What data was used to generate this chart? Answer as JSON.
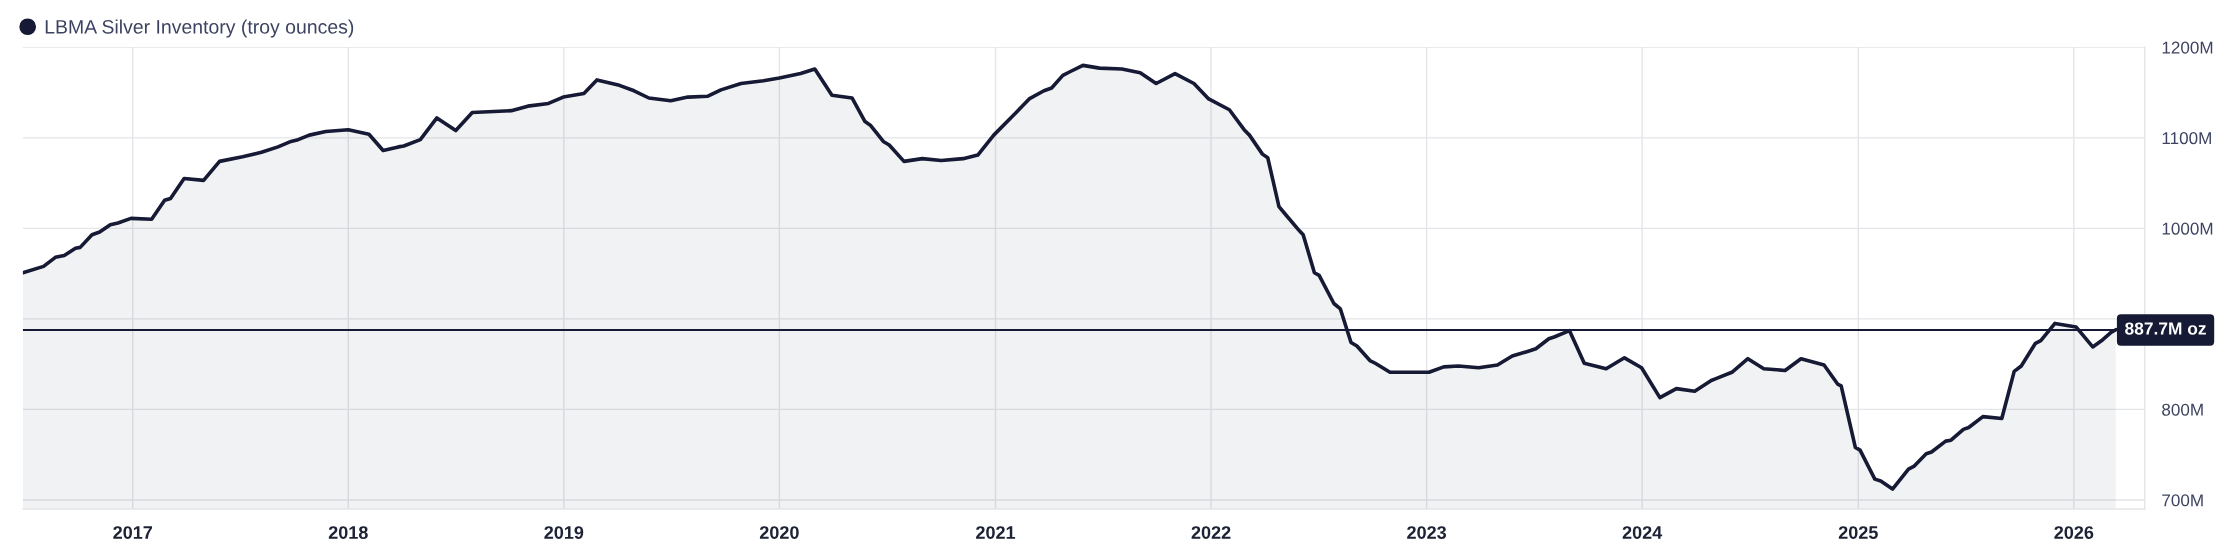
{
  "chart_data": {
    "type": "area",
    "x": [
      "2016-06-29",
      "2016-08-03",
      "2016-08-23",
      "2016-09-07",
      "2016-09-26",
      "2016-10-04",
      "2016-10-24",
      "2016-11-06",
      "2016-11-24",
      "2016-12-07",
      "2016-12-29",
      "2017-02-02",
      "2017-02-24",
      "2017-03-06",
      "2017-03-29",
      "2017-05-01",
      "2017-05-28",
      "2017-07-06",
      "2017-08-07",
      "2017-09-04",
      "2017-09-26",
      "2017-10-08",
      "2017-10-27",
      "2017-11-24",
      "2018-01-01",
      "2018-02-05",
      "2018-03-01",
      "2018-03-27",
      "2018-04-05",
      "2018-05-03",
      "2018-05-31",
      "2018-07-02",
      "2018-07-30",
      "2018-10-04",
      "2018-11-01",
      "2018-12-06",
      "2018-12-31",
      "2019-02-04",
      "2019-02-26",
      "2019-04-05",
      "2019-04-30",
      "2019-05-25",
      "2019-07-01",
      "2019-07-30",
      "2019-09-02",
      "2019-09-24",
      "2019-10-28",
      "2019-12-05",
      "2020-01-01",
      "2020-02-06",
      "2020-03-01",
      "2020-03-30",
      "2020-05-03",
      "2020-05-25",
      "2020-06-03",
      "2020-06-25",
      "2020-07-05",
      "2020-07-30",
      "2020-08-30",
      "2020-10-01",
      "2020-11-07",
      "2020-12-02",
      "2020-12-29",
      "2021-02-02",
      "2021-02-27",
      "2021-03-24",
      "2021-04-06",
      "2021-04-25",
      "2021-05-07",
      "2021-05-29",
      "2021-06-26",
      "2021-08-03",
      "2021-09-03",
      "2021-09-30",
      "2021-11-01",
      "2021-12-03",
      "2021-12-28",
      "2022-02-01",
      "2022-02-26",
      "2022-03-07",
      "2022-03-29",
      "2022-04-07",
      "2022-04-26",
      "2022-05-05",
      "2022-05-31",
      "2022-06-06",
      "2022-06-25",
      "2022-07-03",
      "2022-07-28",
      "2022-08-08",
      "2022-08-26",
      "2022-09-05",
      "2022-09-27",
      "2022-10-06",
      "2022-10-31",
      "2023-01-05",
      "2023-01-30",
      "2023-02-24",
      "2023-03-30",
      "2023-05-01",
      "2023-05-26",
      "2023-06-26",
      "2023-07-05",
      "2023-07-27",
      "2023-08-05",
      "2023-08-31",
      "2023-09-25",
      "2023-11-01",
      "2023-12-02",
      "2023-12-31",
      "2024-01-31",
      "2024-02-28",
      "2024-03-30",
      "2024-04-27",
      "2024-05-05",
      "2024-06-01",
      "2024-06-28",
      "2024-07-25",
      "2024-08-30",
      "2024-09-26",
      "2024-11-04",
      "2024-11-27",
      "2024-12-03",
      "2024-12-27",
      "2025-01-04",
      "2025-01-29",
      "2025-02-08",
      "2025-02-28",
      "2025-03-27",
      "2025-04-05",
      "2025-04-26",
      "2025-05-05",
      "2025-05-29",
      "2025-06-07",
      "2025-06-28",
      "2025-07-07",
      "2025-07-31",
      "2025-09-01",
      "2025-09-22",
      "2025-10-04",
      "2025-10-28",
      "2025-11-06",
      "2025-11-30",
      "2026-01-05",
      "2026-02-02",
      "2026-02-19",
      "2026-03-05",
      "2026-03-13"
    ],
    "series": [
      {
        "name": "LBMA Silver Inventory (troy ounces)",
        "color": "#161a35",
        "values": [
          951,
          958,
          968,
          970,
          978,
          979,
          993,
          996,
          1004,
          1006,
          1011,
          1010,
          1031,
          1033,
          1055,
          1053,
          1074,
          1079,
          1084,
          1090,
          1096,
          1098,
          1103,
          1107,
          1109,
          1104,
          1086,
          1090,
          1091,
          1098,
          1122,
          1108,
          1128,
          1130,
          1135,
          1138,
          1145,
          1149,
          1164,
          1158,
          1152,
          1144,
          1141,
          1145,
          1146,
          1153,
          1160,
          1163,
          1166,
          1171,
          1176,
          1147,
          1144,
          1118,
          1114,
          1096,
          1092,
          1074,
          1077,
          1075,
          1077,
          1081,
          1103,
          1126,
          1143,
          1152,
          1155,
          1169,
          1173,
          1180,
          1177,
          1176,
          1172,
          1160,
          1171,
          1160,
          1143,
          1131,
          1109,
          1103,
          1082,
          1078,
          1024,
          1017,
          997,
          993,
          951,
          948,
          917,
          911,
          874,
          870,
          854,
          851,
          841,
          841,
          847,
          848,
          846,
          849,
          859,
          865,
          867,
          878,
          880,
          887,
          851,
          845,
          857,
          846,
          813,
          823,
          820,
          832,
          834,
          841,
          856,
          845,
          843,
          856,
          849,
          828,
          826,
          758,
          755,
          723,
          721,
          712,
          734,
          737,
          751,
          753,
          765,
          766,
          778,
          780,
          792,
          790,
          842,
          848,
          873,
          876,
          895,
          891,
          869,
          877,
          885,
          888
        ]
      }
    ],
    "xlim": [
      "2016-06-29",
      "2026-05-01"
    ],
    "xticks": [
      "2017",
      "2018",
      "2019",
      "2020",
      "2021",
      "2022",
      "2023",
      "2024",
      "2025",
      "2026"
    ],
    "ylim": [
      690,
      1200
    ],
    "yticks": [
      {
        "value": 700,
        "label": "700M"
      },
      {
        "value": 800,
        "label": "800M"
      },
      {
        "value": 900,
        "label": null
      },
      {
        "value": 1000,
        "label": "1000M"
      },
      {
        "value": 1100,
        "label": "1100M"
      },
      {
        "value": 1200,
        "label": "1200M"
      }
    ],
    "ref_lines": [
      {
        "axis": "y",
        "value": 887.7,
        "label": "887.7M oz",
        "color": "#161a35"
      }
    ],
    "grid": true,
    "legend": "top left",
    "line_style": "solid"
  }
}
